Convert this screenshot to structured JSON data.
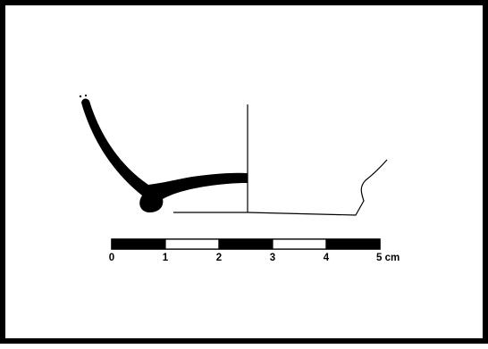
{
  "figure": {
    "subject": "pottery-base-profile",
    "colors": {
      "border": "#000000",
      "section_fill": "#000000",
      "outline": "#000000",
      "background": "#ffffff"
    }
  },
  "scale_bar": {
    "labels": [
      "0",
      "1",
      "2",
      "3",
      "4",
      "5 cm"
    ],
    "segment_pattern": [
      "black",
      "white",
      "black",
      "white",
      "black"
    ]
  }
}
